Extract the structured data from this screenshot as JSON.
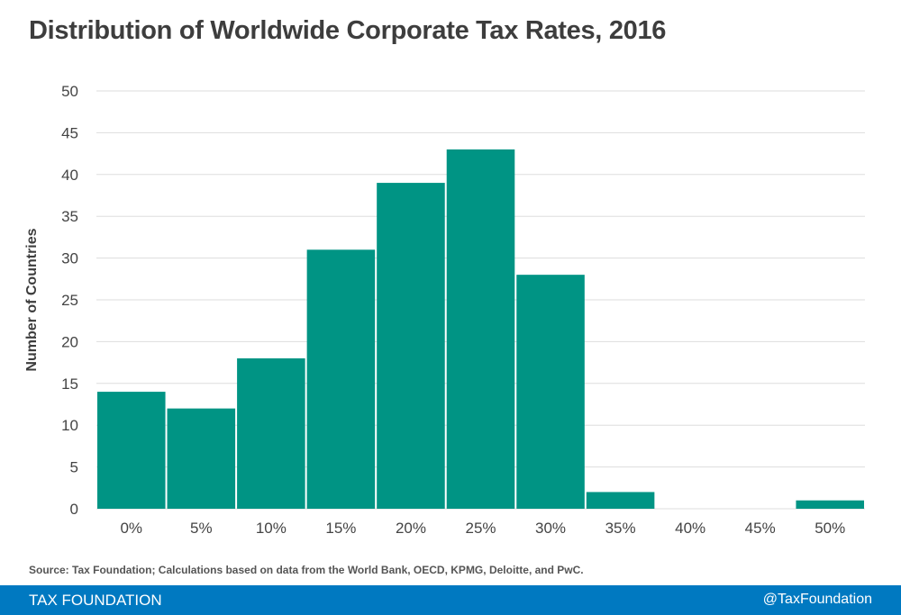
{
  "chart_data": {
    "type": "bar",
    "title": "Distribution of Worldwide Corporate Tax Rates, 2016",
    "xlabel": "",
    "ylabel": "Number of Countries",
    "categories": [
      "0%",
      "5%",
      "10%",
      "15%",
      "20%",
      "25%",
      "30%",
      "35%",
      "40%",
      "45%",
      "50%"
    ],
    "values": [
      14,
      12,
      18,
      31,
      39,
      43,
      28,
      2,
      0,
      0,
      1
    ],
    "ylim": [
      0,
      50
    ],
    "yticks": [
      0,
      5,
      10,
      15,
      20,
      25,
      30,
      35,
      40,
      45,
      50
    ],
    "grid": true,
    "bar_color": "#009484"
  },
  "source": "Source: Tax Foundation; Calculations based on data from the World Bank, OECD, KPMG, Deloitte, and PwC.",
  "footer": {
    "brand": "TAX FOUNDATION",
    "handle": "@TaxFoundation",
    "color": "#0079c1"
  }
}
